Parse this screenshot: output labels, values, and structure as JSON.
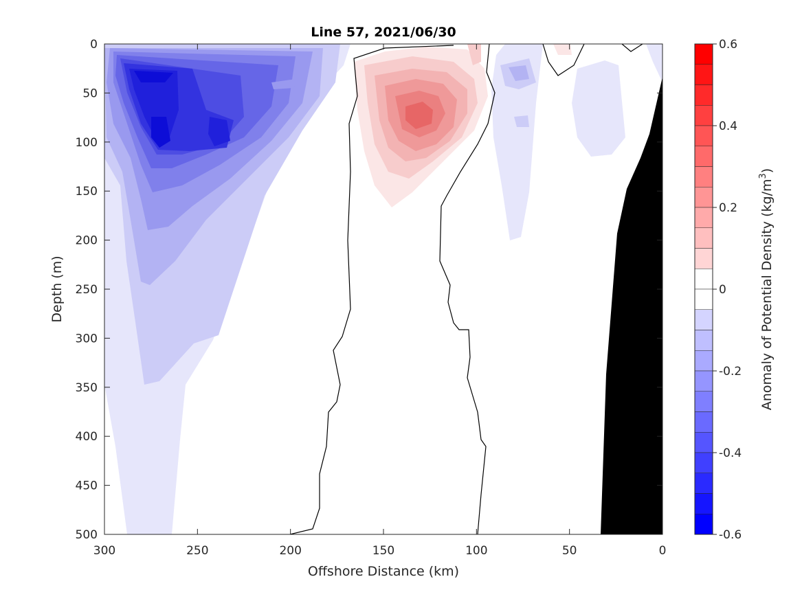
{
  "chart_data": {
    "type": "contour",
    "title": "Line 57, 2021/06/30",
    "xlabel": "Offshore Distance (km)",
    "ylabel": "Depth (m)",
    "x_reversed": true,
    "y_reversed": true,
    "xlim": [
      0,
      300
    ],
    "ylim": [
      0,
      500
    ],
    "xticks": [
      300,
      250,
      200,
      150,
      100,
      50,
      0
    ],
    "yticks": [
      0,
      50,
      100,
      150,
      200,
      250,
      300,
      350,
      400,
      450,
      500
    ],
    "colorbar": {
      "label": "Anomaly of Potential Density",
      "units_base": "(kg/m",
      "units_sup": "3",
      "units_close": ")",
      "range": [
        -0.6,
        0.6
      ],
      "step": 0.05,
      "ticks": [
        0.6,
        0.4,
        0.2,
        0,
        -0.2,
        -0.4,
        -0.6
      ],
      "tick_labels": [
        "0.6",
        "0.4",
        "0.2",
        "0",
        "-0.2",
        "-0.4",
        "-0.6"
      ]
    },
    "features": [
      {
        "kind": "negative-anomaly",
        "center_km": 270,
        "center_depth_m": 90,
        "min": -0.5
      },
      {
        "kind": "negative-anomaly",
        "center_km": 277,
        "center_depth_m": 32,
        "min": -0.55
      },
      {
        "kind": "negative-anomaly",
        "center_km": 235,
        "center_depth_m": 95,
        "min": -0.45
      },
      {
        "kind": "positive-anomaly",
        "center_km": 130,
        "center_depth_m": 72,
        "max": 0.3
      },
      {
        "kind": "negative-anomaly",
        "center_km": 77,
        "center_depth_m": 30,
        "min": -0.15
      },
      {
        "kind": "bathymetry",
        "color": "#000000"
      }
    ]
  }
}
